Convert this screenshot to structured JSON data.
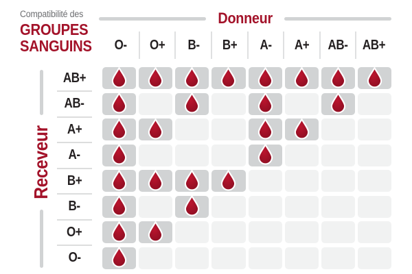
{
  "title": {
    "line1": "Compatibilité des",
    "line2": "GROUPES",
    "line3": "SANGUINS"
  },
  "chart_data": {
    "type": "table",
    "title": "Compatibilité des GROUPES SANGUINS",
    "x_header": "Donneur",
    "y_header": "Receveur",
    "columns": [
      "O-",
      "O+",
      "B-",
      "B+",
      "A-",
      "A+",
      "AB-",
      "AB+"
    ],
    "rows": [
      "AB+",
      "AB-",
      "A+",
      "A-",
      "B+",
      "B-",
      "O+",
      "O-"
    ],
    "values": [
      [
        1,
        1,
        1,
        1,
        1,
        1,
        1,
        1
      ],
      [
        1,
        0,
        1,
        0,
        1,
        0,
        1,
        0
      ],
      [
        1,
        1,
        0,
        0,
        1,
        1,
        0,
        0
      ],
      [
        1,
        0,
        0,
        0,
        1,
        0,
        0,
        0
      ],
      [
        1,
        1,
        1,
        1,
        0,
        0,
        0,
        0
      ],
      [
        1,
        0,
        1,
        0,
        0,
        0,
        0,
        0
      ],
      [
        1,
        1,
        0,
        0,
        0,
        0,
        0,
        0
      ],
      [
        1,
        0,
        0,
        0,
        0,
        0,
        0,
        0
      ]
    ],
    "cell_true_marker": "blood-drop-icon",
    "cell_false_marker": "empty",
    "legend_position": "none",
    "grid": "off"
  },
  "colors": {
    "accent_red": "#a31229",
    "drop_red_light": "#bb152e",
    "drop_red_dark": "#8d0e22",
    "cell_filled_gray": "#d1d3d4",
    "cell_empty_gray": "#f1f2f2",
    "text_black": "#231f20",
    "muted_gray": "#6d6e71",
    "divider_gray": "#dcdddd"
  }
}
